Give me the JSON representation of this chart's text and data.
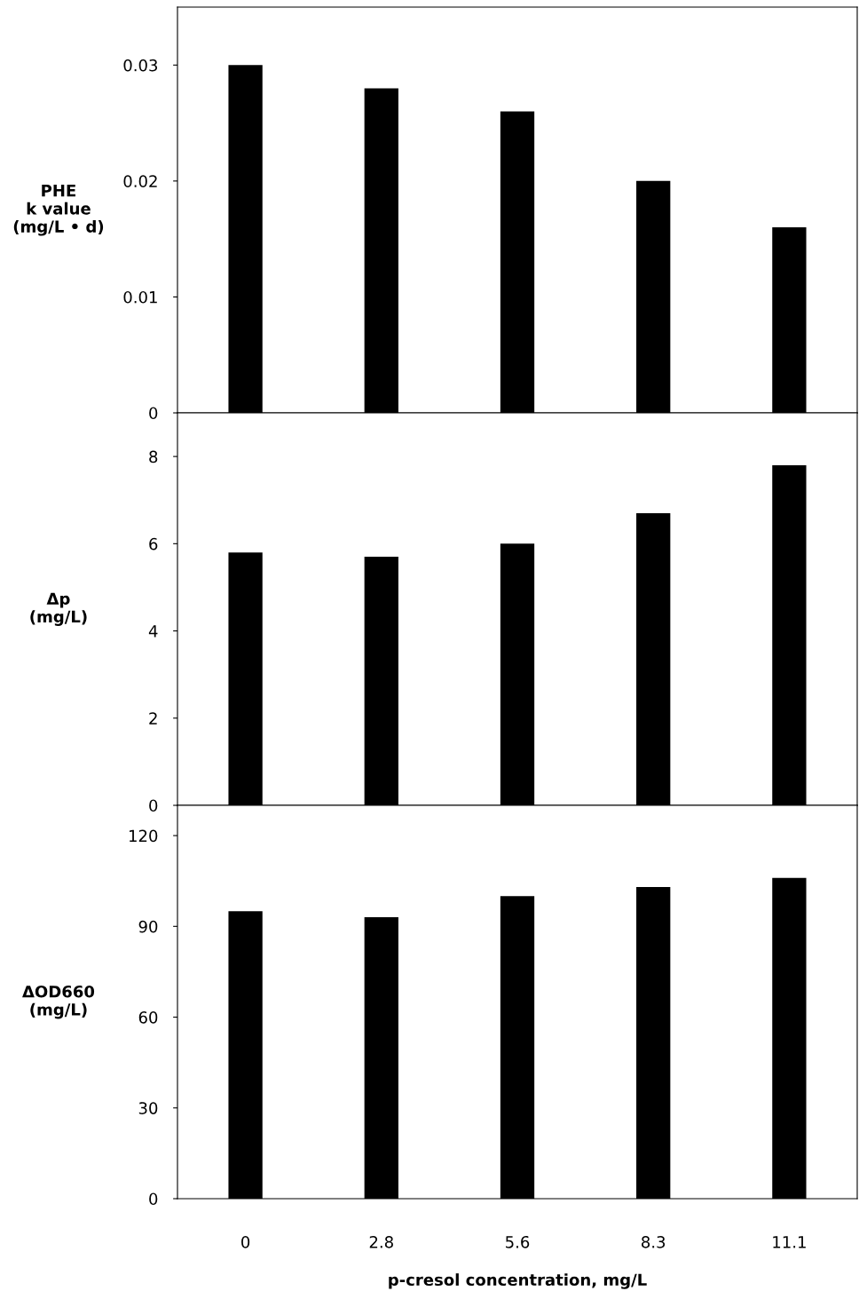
{
  "chart_data": [
    {
      "type": "bar",
      "ylabel": "PHE\nk value\n(mg/L • d)",
      "categories": [
        "0",
        "2.8",
        "5.6",
        "8.3",
        "11.1"
      ],
      "values": [
        0.03,
        0.028,
        0.026,
        0.02,
        0.016
      ],
      "color": "#000000",
      "ylim": [
        0,
        0.035
      ],
      "yticks": [
        0,
        0.01,
        0.02,
        0.03
      ],
      "tick_labels": "y",
      "grid": false
    },
    {
      "type": "bar",
      "ylabel": "Δp\n(mg/L)",
      "categories": [
        "0",
        "2.8",
        "5.6",
        "8.3",
        "11.1"
      ],
      "values": [
        5.8,
        5.7,
        6.0,
        6.7,
        7.8
      ],
      "color": "#000000",
      "ylim": [
        0,
        9
      ],
      "yticks": [
        0,
        2,
        4,
        6,
        8
      ],
      "tick_labels": "y",
      "grid": false
    },
    {
      "type": "bar",
      "ylabel": "ΔOD660\n(mg/L)",
      "xlabel": "p-cresol concentration, mg/L",
      "categories": [
        "0",
        "2.8",
        "5.6",
        "8.3",
        "11.1"
      ],
      "values": [
        95,
        93,
        100,
        103,
        106
      ],
      "color": "#000000",
      "ylim": [
        0,
        130
      ],
      "yticks": [
        0,
        30,
        60,
        90,
        120
      ],
      "grid": false
    }
  ]
}
